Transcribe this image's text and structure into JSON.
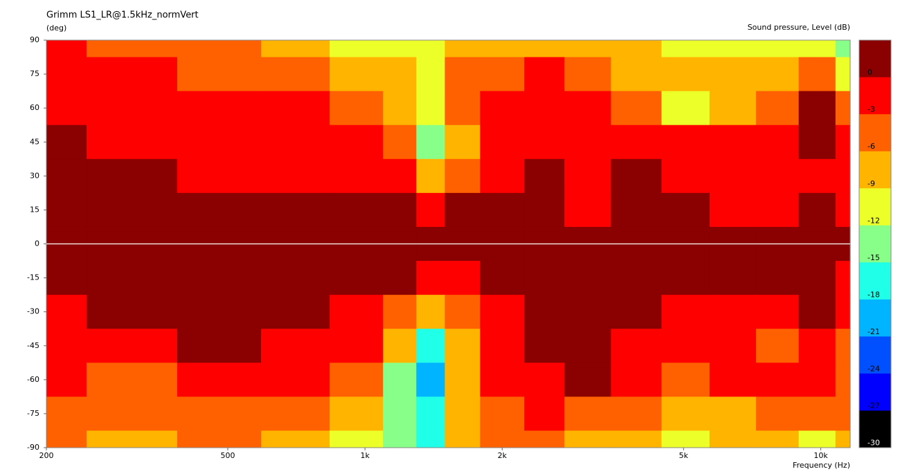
{
  "chart_data": {
    "type": "contour",
    "title": "Grimm LS1_LR@1.5kHz_normVert",
    "y_label": "(deg)",
    "x_label": "Frequency  (Hz)",
    "colorbar_label": "Sound pressure, Level  (dB)",
    "log_x": true,
    "xlim": [
      200,
      11600
    ],
    "ylim": [
      -90,
      90
    ],
    "xticks": [
      200,
      500,
      {
        "value": 1000,
        "label": "1k"
      },
      {
        "value": 2000,
        "label": "2k"
      },
      {
        "value": 5000,
        "label": "5k"
      },
      {
        "value": 10000,
        "label": "10k"
      }
    ],
    "yticks": [
      90,
      75,
      60,
      45,
      30,
      15,
      0,
      -15,
      -30,
      -45,
      -60,
      -75,
      -90
    ],
    "levels": [
      0,
      -3,
      -6,
      -9,
      -12,
      -15,
      -18,
      -21,
      -24,
      -27,
      -30
    ],
    "level_colors": [
      "#8b0000",
      "#ff0000",
      "#ff6000",
      "#ffb400",
      "#ecff28",
      "#88ff88",
      "#20ffe8",
      "#00b4ff",
      "#0050ff",
      "#0000ff",
      "#000000"
    ],
    "x": [
      200,
      300,
      500,
      700,
      1000,
      1200,
      1400,
      1600,
      2000,
      2500,
      3000,
      4000,
      5000,
      6500,
      8000,
      10000,
      11600
    ],
    "y": [
      90,
      75,
      60,
      45,
      30,
      15,
      0,
      -15,
      -30,
      -45,
      -60,
      -75,
      -90
    ],
    "z": [
      [
        -4,
        -7,
        -7,
        -10,
        -13,
        -13,
        -13,
        -10,
        -10,
        -10,
        -10,
        -10,
        -13,
        -13,
        -13,
        -13,
        -16
      ],
      [
        -4,
        -4,
        -7,
        -7,
        -10,
        -10,
        -13,
        -7,
        -7,
        -4,
        -7,
        -10,
        -10,
        -10,
        -10,
        -7,
        -13
      ],
      [
        -4,
        -4,
        -4,
        -4,
        -7,
        -10,
        -13,
        -7,
        -4,
        -4,
        -4,
        -7,
        -13,
        -10,
        -7,
        -1,
        -7
      ],
      [
        -1,
        -4,
        -4,
        -4,
        -4,
        -7,
        -16,
        -10,
        -4,
        -4,
        -4,
        -4,
        -4,
        -4,
        -4,
        -1,
        -4
      ],
      [
        -1,
        -1,
        -4,
        -4,
        -4,
        -4,
        -10,
        -7,
        -4,
        -1,
        -4,
        -1,
        -4,
        -4,
        -4,
        -4,
        -4
      ],
      [
        -1,
        -1,
        -1,
        -1,
        -1,
        -1,
        -4,
        -1,
        -1,
        -1,
        -4,
        -1,
        -1,
        -4,
        -4,
        -1,
        -4
      ],
      [
        0,
        0,
        0,
        0,
        0,
        0,
        0,
        0,
        0,
        0,
        0,
        0,
        0,
        0,
        0,
        0,
        0
      ],
      [
        -1,
        -1,
        -1,
        -1,
        -1,
        -1,
        -4,
        -4,
        -1,
        -1,
        -1,
        -1,
        -1,
        -1,
        -1,
        -1,
        -4
      ],
      [
        -4,
        -1,
        -1,
        -1,
        -4,
        -7,
        -10,
        -7,
        -4,
        -1,
        -1,
        -1,
        -4,
        -4,
        -4,
        -1,
        -4
      ],
      [
        -4,
        -4,
        -1,
        -4,
        -4,
        -10,
        -19,
        -10,
        -4,
        -1,
        -1,
        -4,
        -4,
        -4,
        -7,
        -4,
        -7
      ],
      [
        -4,
        -7,
        -4,
        -4,
        -7,
        -16,
        -22,
        -10,
        -4,
        -4,
        -1,
        -4,
        -7,
        -4,
        -4,
        -4,
        -7
      ],
      [
        -7,
        -7,
        -7,
        -7,
        -10,
        -16,
        -19,
        -10,
        -7,
        -4,
        -7,
        -7,
        -10,
        -10,
        -7,
        -7,
        -7
      ],
      [
        -7,
        -10,
        -7,
        -10,
        -13,
        -16,
        -19,
        -10,
        -7,
        -7,
        -10,
        -10,
        -13,
        -10,
        -10,
        -13,
        -10
      ]
    ]
  }
}
